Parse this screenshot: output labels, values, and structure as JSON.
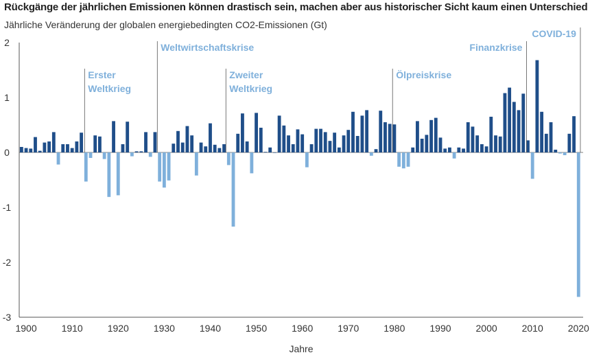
{
  "title": "Rückgänge der jährlichen Emissionen können drastisch sein, machen aber aus historischer Sicht kaum einen Unterschied",
  "subtitle": "Jährliche Veränderung der globalen energiebedingten CO2-Emissionen (Gt)",
  "colors": {
    "increase": "#1f4e89",
    "decrease": "#7fb0db",
    "annotation": "#7fb0db",
    "axis": "#555555"
  },
  "chart_data": {
    "type": "bar",
    "xlabel": "Jahre",
    "ylabel": "",
    "ylim": [
      -3,
      2
    ],
    "xlim": [
      1898.5,
      2021
    ],
    "yticks": [
      2,
      1,
      0,
      -1,
      -2,
      -3
    ],
    "ytick_labels": [
      "2",
      "1",
      "0",
      "-1",
      "-2",
      "-3"
    ],
    "xticks": [
      1900,
      1910,
      1920,
      1930,
      1940,
      1950,
      1960,
      1970,
      1980,
      1990,
      2000,
      2010,
      2020
    ],
    "xtick_labels": [
      "1900",
      "1910",
      "1920",
      "1930",
      "1940",
      "1950",
      "1960",
      "1970",
      "1980",
      "1990",
      "2000",
      "2010",
      "2020"
    ],
    "years": [
      1899,
      1900,
      1901,
      1902,
      1903,
      1904,
      1905,
      1906,
      1907,
      1908,
      1909,
      1910,
      1911,
      1912,
      1913,
      1914,
      1915,
      1916,
      1917,
      1918,
      1919,
      1920,
      1921,
      1922,
      1923,
      1924,
      1925,
      1926,
      1927,
      1928,
      1929,
      1930,
      1931,
      1932,
      1933,
      1934,
      1935,
      1936,
      1937,
      1938,
      1939,
      1940,
      1941,
      1942,
      1943,
      1944,
      1945,
      1946,
      1947,
      1948,
      1949,
      1950,
      1951,
      1952,
      1953,
      1954,
      1955,
      1956,
      1957,
      1958,
      1959,
      1960,
      1961,
      1962,
      1963,
      1964,
      1965,
      1966,
      1967,
      1968,
      1969,
      1970,
      1971,
      1972,
      1973,
      1974,
      1975,
      1976,
      1977,
      1978,
      1979,
      1980,
      1981,
      1982,
      1983,
      1984,
      1985,
      1986,
      1987,
      1988,
      1989,
      1990,
      1991,
      1992,
      1993,
      1994,
      1995,
      1996,
      1997,
      1998,
      1999,
      2000,
      2001,
      2002,
      2003,
      2004,
      2005,
      2006,
      2007,
      2008,
      2009,
      2010,
      2011,
      2012,
      2013,
      2014,
      2015,
      2016,
      2017,
      2018,
      2019,
      2020
    ],
    "values": [
      0.1,
      0.08,
      0.07,
      0.28,
      0.03,
      0.18,
      0.2,
      0.37,
      -0.22,
      0.15,
      0.15,
      0.08,
      0.2,
      0.36,
      -0.53,
      -0.1,
      0.31,
      0.29,
      -0.12,
      -0.81,
      0.57,
      -0.78,
      0.15,
      0.56,
      -0.07,
      0.02,
      0.02,
      0.37,
      -0.08,
      0.37,
      -0.53,
      -0.64,
      -0.51,
      0.16,
      0.39,
      0.18,
      0.48,
      0.31,
      -0.42,
      0.18,
      0.11,
      0.53,
      0.14,
      0.08,
      0.15,
      -0.23,
      -1.35,
      0.34,
      0.71,
      0.2,
      -0.38,
      0.72,
      0.45,
      0.01,
      0.09,
      0.0,
      0.67,
      0.49,
      0.31,
      0.15,
      0.42,
      0.33,
      -0.27,
      0.15,
      0.43,
      0.43,
      0.37,
      0.21,
      0.36,
      0.09,
      0.31,
      0.41,
      0.74,
      0.3,
      0.67,
      0.77,
      -0.06,
      0.06,
      0.76,
      0.55,
      0.52,
      0.51,
      -0.26,
      -0.29,
      -0.26,
      0.09,
      0.57,
      0.25,
      0.32,
      0.59,
      0.63,
      0.27,
      0.07,
      0.09,
      -0.11,
      0.09,
      0.07,
      0.55,
      0.47,
      0.31,
      0.15,
      0.11,
      0.65,
      0.31,
      0.29,
      1.08,
      1.18,
      0.92,
      0.77,
      1.07,
      0.22,
      -0.48,
      1.68,
      0.74,
      0.34,
      0.55,
      0.05,
      -0.02,
      -0.05,
      0.34,
      0.66,
      -2.63
    ],
    "annotations": [
      {
        "label_lines": [
          "Erster",
          "Weltkrieg"
        ],
        "year": 1912.7,
        "y": 1.35
      },
      {
        "label_lines": [
          "Weltwirtschaftskrise"
        ],
        "year": 1928.5,
        "y": 1.85
      },
      {
        "label_lines": [
          "Zweiter",
          "Weltkrieg"
        ],
        "year": 1943.4,
        "y": 1.35
      },
      {
        "label_lines": [
          "Ölpreiskrise"
        ],
        "year": 1979.6,
        "y": 1.35
      },
      {
        "label_lines": [
          "Finanzkrise"
        ],
        "year": 2008.7,
        "y": 1.85
      },
      {
        "label_lines": [
          "COVID-19"
        ],
        "year": 2020.4,
        "y": 2.1
      }
    ]
  }
}
